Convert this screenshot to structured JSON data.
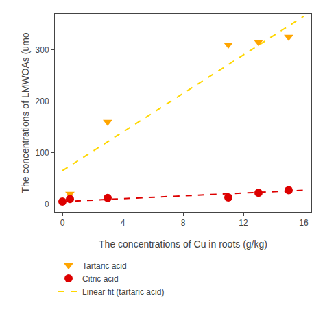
{
  "chart_data": {
    "type": "scatter",
    "xlabel": "The concentrations of Cu in roots (g/kg)",
    "ylabel": "The concentrations of LMWOAs (umo",
    "xlim": [
      -0.5,
      16.5
    ],
    "ylim": [
      -15,
      370
    ],
    "xticks": [
      0,
      4,
      8,
      12,
      16
    ],
    "yticks": [
      0,
      100,
      200,
      300
    ],
    "grid": false,
    "legend": "bottom",
    "series": [
      {
        "name": "Tartaric acid",
        "type": "scatter",
        "marker": "triangle-down",
        "color": "#FFA500",
        "x": [
          0.5,
          3.0,
          11.0,
          13.0,
          15.0
        ],
        "values": [
          20,
          160,
          310,
          315,
          325
        ]
      },
      {
        "name": "Citric acid",
        "type": "scatter",
        "marker": "circle",
        "color": "#DD0000",
        "x": [
          0.0,
          0.5,
          3.0,
          11.0,
          13.0,
          15.0
        ],
        "values": [
          5,
          10,
          12,
          13,
          22,
          27
        ]
      },
      {
        "name": "Linear fit (tartaric acid)",
        "type": "line",
        "line_style": "dashed",
        "color": "#FFD700",
        "x": [
          0,
          16
        ],
        "values": [
          65,
          365
        ]
      },
      {
        "type": "line",
        "line_style": "dashed",
        "color": "#DD0000",
        "x": [
          0,
          16
        ],
        "values": [
          5,
          27
        ]
      }
    ]
  }
}
